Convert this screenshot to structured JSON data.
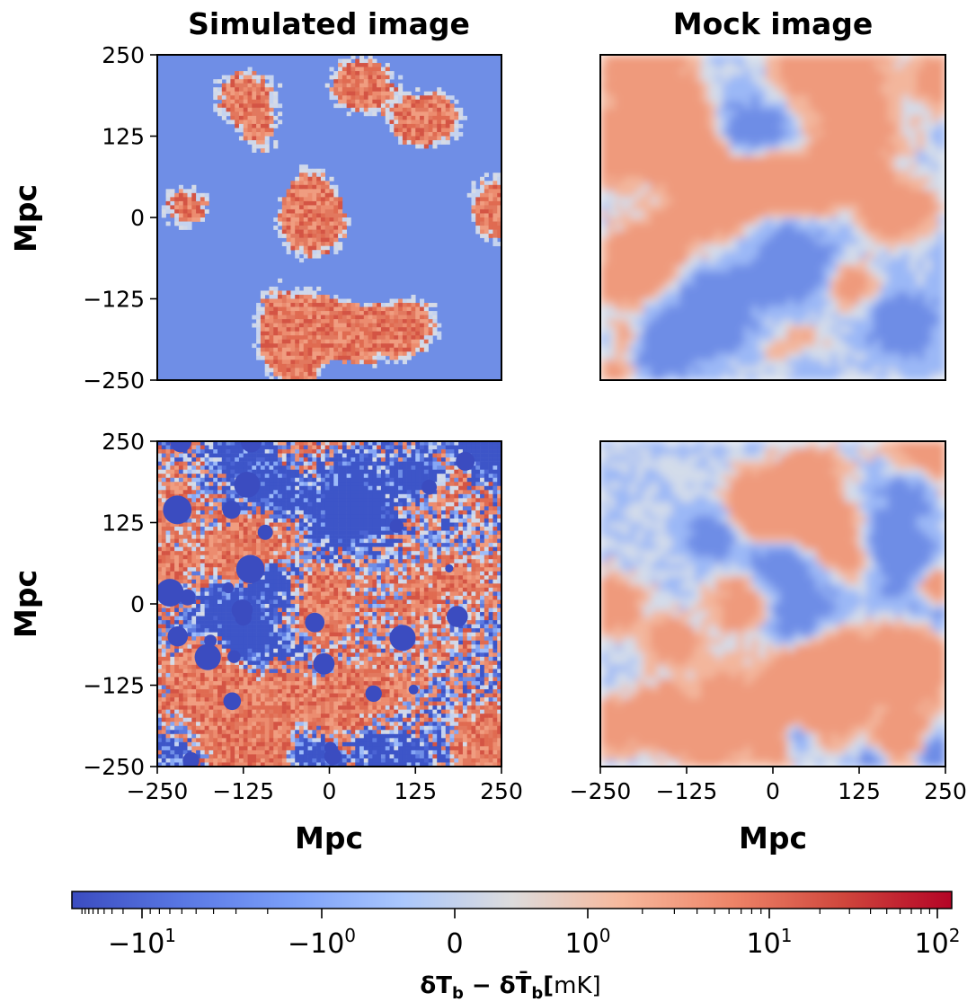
{
  "chart_data": [
    {
      "type": "heatmap",
      "title": "Simulated image",
      "xlabel": "",
      "ylabel": "Mpc",
      "xlim": [
        -250,
        250
      ],
      "ylim": [
        -250,
        250
      ],
      "xticks": [],
      "yticks": [
        "250",
        "125",
        "0",
        "−125",
        "−250"
      ],
      "style": "simulated",
      "background_color": "#6f8ee6",
      "description_values": "ionized regions at baseline (~-7 mK) with red neutral islands (~+3 to +20 mK)"
    },
    {
      "type": "heatmap",
      "title": "Mock image",
      "xlabel": "",
      "ylabel": "",
      "xlim": [
        -250,
        250
      ],
      "ylim": [
        -250,
        250
      ],
      "xticks": [],
      "yticks": [],
      "style": "mock"
    },
    {
      "type": "heatmap",
      "title": "",
      "xlabel": "Mpc",
      "ylabel": "Mpc",
      "xlim": [
        -250,
        250
      ],
      "ylim": [
        -250,
        250
      ],
      "xticks": [
        "−250",
        "−125",
        "0",
        "125",
        "250"
      ],
      "yticks": [
        "250",
        "125",
        "0",
        "−125",
        "−250"
      ],
      "style": "simulated-noisy"
    },
    {
      "type": "heatmap",
      "title": "",
      "xlabel": "Mpc",
      "ylabel": "",
      "xlim": [
        -250,
        250
      ],
      "ylim": [
        -250,
        250
      ],
      "xticks": [
        "−250",
        "−125",
        "0",
        "125",
        "250"
      ],
      "yticks": [],
      "style": "mock"
    }
  ],
  "colorbar": {
    "colormap": "coolwarm",
    "scale": "symlog",
    "range": [
      -40,
      120
    ],
    "tick_labels": [
      "−10",
      "−10",
      "0",
      "10",
      "10",
      "10"
    ],
    "tick_exponents": [
      "1",
      "0",
      "",
      "0",
      "1",
      "2"
    ],
    "label_bold": "δT",
    "label_sub": "b",
    "label_minus": " − δT̄",
    "label_sub2": "b",
    "label_bracket": "[",
    "label_unit": "mK]",
    "colors": [
      "#3b4cc0",
      "#6788ee",
      "#9abbff",
      "#c9d7f0",
      "#dddddd",
      "#f2cbb7",
      "#f7a889",
      "#e26952",
      "#b40426"
    ]
  }
}
